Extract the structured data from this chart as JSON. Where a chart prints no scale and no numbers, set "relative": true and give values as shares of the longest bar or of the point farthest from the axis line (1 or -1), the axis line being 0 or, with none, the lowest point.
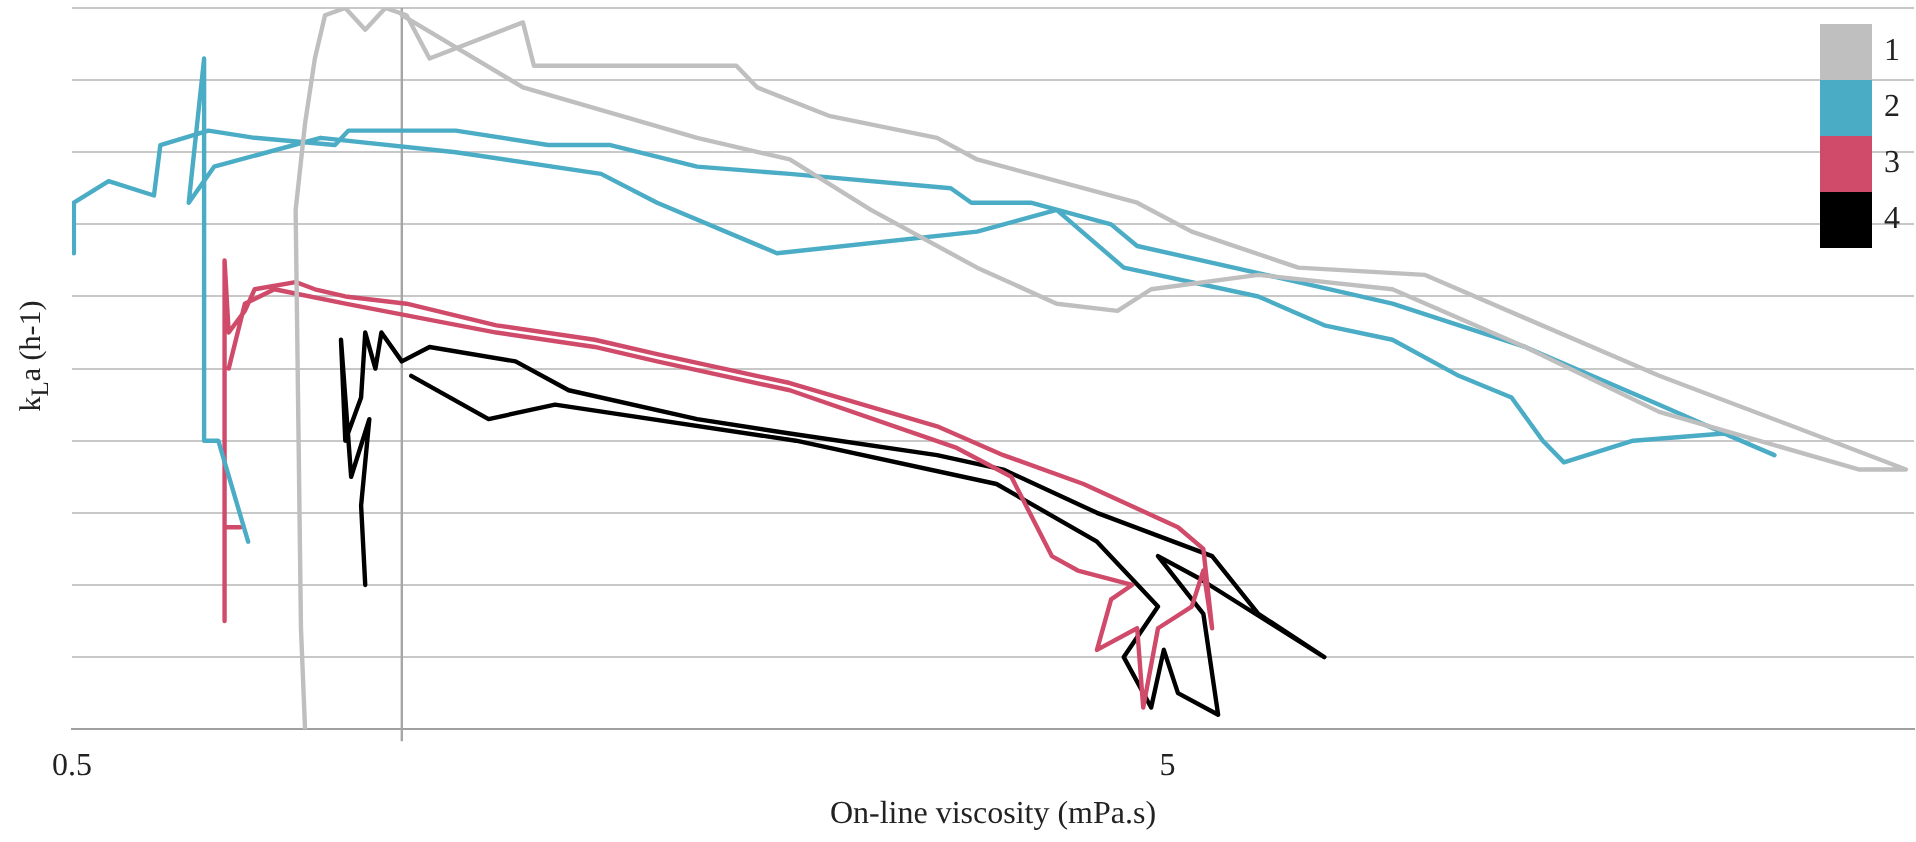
{
  "chart_data": {
    "type": "line",
    "xlabel": "On-line viscosity (mPa.s)",
    "ylabel": "k$_{L}$a (h-1)",
    "relative": true,
    "log": "x",
    "xlim": [
      0.5,
      24
    ],
    "xticks": [
      0.5,
      5
    ],
    "grid": "y",
    "legend": "top right",
    "marker": "none",
    "line_style": "solid",
    "ref_lines": [
      {
        "axis": "x",
        "value": 1,
        "color": "#a6a6a6"
      }
    ],
    "series": [
      {
        "name": "1",
        "color": "#bfbfbf",
        "x": [
          0.816,
          0.809,
          0.805,
          0.8,
          0.816,
          0.833,
          0.851,
          0.888,
          0.926,
          0.966,
          1.01,
          1.06,
          1.29,
          1.32,
          1.71,
          2.02,
          2.11,
          2.46,
          3.08,
          3.35,
          4.69,
          5.26,
          6.58,
          8.58,
          10.6,
          14.05,
          18.6,
          23.6,
          21.4,
          14.05,
          10.6,
          8.02,
          6.05,
          4.83,
          4.5,
          3.96,
          3.35,
          2.68,
          2.26,
          1.86,
          1.29,
          1.0
        ],
        "values": [
          0,
          0.14,
          0.4,
          0.72,
          0.84,
          0.93,
          0.99,
          1.0,
          0.97,
          1.0,
          0.99,
          0.93,
          0.98,
          0.92,
          0.92,
          0.92,
          0.89,
          0.85,
          0.82,
          0.79,
          0.73,
          0.69,
          0.64,
          0.63,
          0.57,
          0.49,
          0.42,
          0.36,
          0.36,
          0.44,
          0.53,
          0.61,
          0.63,
          0.61,
          0.58,
          0.59,
          0.64,
          0.72,
          0.79,
          0.82,
          0.89,
          0.99
        ]
      },
      {
        "name": "2",
        "color": "#4bacc6",
        "x": [
          0.502,
          0.502,
          0.54,
          0.594,
          0.602,
          0.666,
          0.734,
          0.869,
          0.894,
          1.12,
          1.36,
          1.55,
          1.86,
          2.26,
          3.17,
          3.31,
          3.75,
          4.44,
          4.69,
          6.58,
          8.02,
          10.6,
          14.05,
          17.9,
          16.1,
          13.3,
          11.5,
          11.0,
          10.3,
          9.22,
          8.02,
          6.95,
          6.05,
          4.56,
          3.96,
          3.35,
          2.2,
          1.71,
          1.52,
          1.12,
          0.843,
          0.674,
          0.639,
          0.66,
          0.66,
          0.68,
          0.724
        ],
        "values": [
          0.66,
          0.73,
          0.76,
          0.74,
          0.81,
          0.83,
          0.82,
          0.81,
          0.83,
          0.83,
          0.81,
          0.81,
          0.78,
          0.77,
          0.75,
          0.73,
          0.73,
          0.7,
          0.67,
          0.62,
          0.59,
          0.53,
          0.45,
          0.38,
          0.41,
          0.4,
          0.37,
          0.4,
          0.46,
          0.49,
          0.54,
          0.56,
          0.6,
          0.64,
          0.72,
          0.69,
          0.66,
          0.73,
          0.77,
          0.8,
          0.82,
          0.78,
          0.73,
          0.93,
          0.4,
          0.4,
          0.26
        ]
      },
      {
        "name": "3",
        "color": "#d04a6a",
        "x": [
          0.712,
          0.689,
          0.689,
          0.689,
          0.695,
          0.719,
          0.734,
          0.8,
          0.833,
          0.888,
          1.01,
          1.22,
          1.5,
          1.71,
          2.26,
          3.08,
          3.54,
          4.19,
          5.11,
          5.39,
          5.49,
          5.39,
          5.26,
          4.9,
          4.75,
          4.69,
          4.31,
          4.44,
          4.64,
          4.14,
          3.92,
          3.6,
          3.21,
          2.26,
          1.71,
          1.5,
          1.22,
          0.888,
          0.765,
          0.719,
          0.695
        ],
        "values": [
          0.28,
          0.28,
          0.15,
          0.65,
          0.55,
          0.58,
          0.61,
          0.62,
          0.61,
          0.6,
          0.59,
          0.56,
          0.54,
          0.52,
          0.48,
          0.42,
          0.38,
          0.34,
          0.28,
          0.25,
          0.14,
          0.22,
          0.17,
          0.14,
          0.03,
          0.14,
          0.11,
          0.18,
          0.2,
          0.22,
          0.24,
          0.35,
          0.39,
          0.47,
          0.51,
          0.53,
          0.55,
          0.59,
          0.61,
          0.59,
          0.5
        ]
      },
      {
        "name": "4",
        "color": "#000000",
        "x": [
          0.926,
          0.918,
          0.934,
          0.899,
          0.88,
          0.888,
          0.918,
          0.926,
          0.946,
          0.958,
          1.0,
          1.06,
          1.27,
          1.42,
          1.86,
          2.26,
          3.08,
          3.54,
          4.31,
          5.49,
          6.05,
          6.95,
          6.31,
          5.33,
          4.9,
          5.39,
          5.56,
          5.11,
          4.96,
          4.83,
          4.56,
          4.9,
          4.31,
          3.49,
          2.29,
          1.38,
          1.2,
          1.02
        ],
        "values": [
          0.2,
          0.31,
          0.43,
          0.35,
          0.54,
          0.4,
          0.46,
          0.55,
          0.5,
          0.55,
          0.51,
          0.53,
          0.51,
          0.47,
          0.43,
          0.41,
          0.38,
          0.36,
          0.3,
          0.24,
          0.16,
          0.1,
          0.14,
          0.21,
          0.24,
          0.16,
          0.02,
          0.05,
          0.11,
          0.03,
          0.1,
          0.17,
          0.26,
          0.34,
          0.4,
          0.45,
          0.43,
          0.49
        ]
      }
    ]
  }
}
